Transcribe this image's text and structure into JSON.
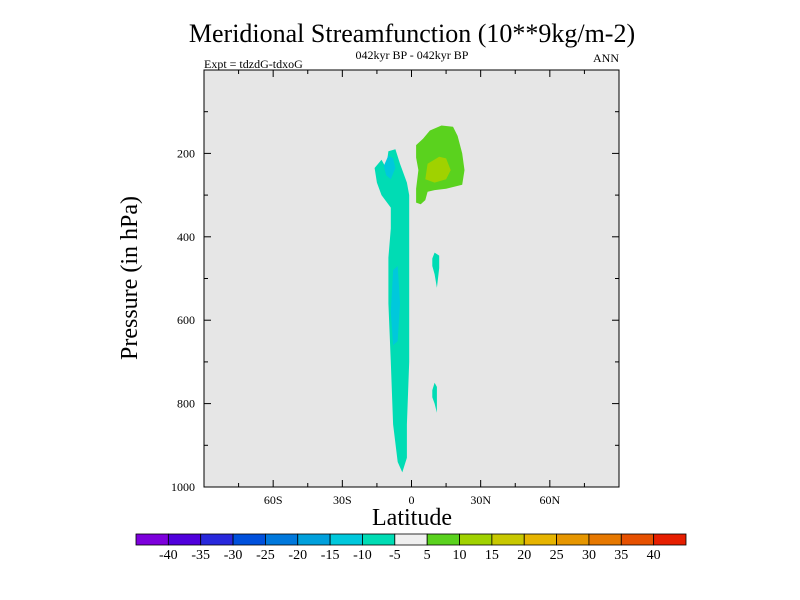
{
  "chart_data": {
    "type": "contour",
    "title": "Meridional Streamfunction (10**9kg/m-2)",
    "subtitle": "042kyr BP - 042kyr BP",
    "left_string": "Expt = tdzdG-tdxoG",
    "right_string": "ANN",
    "xlabel": "Latitude",
    "ylabel": "Pressure (in hPa)",
    "xlim": [
      -90,
      90
    ],
    "ylim": [
      1000,
      0
    ],
    "x_ticks": [
      {
        "value": -60,
        "label": "60S"
      },
      {
        "value": -30,
        "label": "30S"
      },
      {
        "value": 0,
        "label": "0"
      },
      {
        "value": 30,
        "label": "30N"
      },
      {
        "value": 60,
        "label": "60N"
      }
    ],
    "y_ticks": [
      {
        "value": 200,
        "label": "200"
      },
      {
        "value": 400,
        "label": "400"
      },
      {
        "value": 600,
        "label": "600"
      },
      {
        "value": 800,
        "label": "800"
      },
      {
        "value": 1000,
        "label": "1000"
      }
    ],
    "background_color": "#e6e6e6",
    "regions": [
      {
        "name": "negative-cell-main",
        "level": -10,
        "color": "#00dcb4",
        "points": [
          [
            -11,
            235
          ],
          [
            -10,
            195
          ],
          [
            -7,
            190
          ],
          [
            -5,
            225
          ],
          [
            -2,
            270
          ],
          [
            -1,
            300
          ],
          [
            -1,
            400
          ],
          [
            -1,
            550
          ],
          [
            -1,
            700
          ],
          [
            -2,
            850
          ],
          [
            -2,
            930
          ],
          [
            -4,
            965
          ],
          [
            -6,
            940
          ],
          [
            -8,
            850
          ],
          [
            -9,
            700
          ],
          [
            -10,
            560
          ],
          [
            -10,
            450
          ],
          [
            -9,
            380
          ],
          [
            -9,
            330
          ],
          [
            -13,
            300
          ],
          [
            -15,
            270
          ],
          [
            -16,
            235
          ],
          [
            -13,
            215
          ]
        ]
      },
      {
        "name": "negative-cell-core",
        "level": -15,
        "color": "#00c8dc",
        "points": [
          [
            -12,
            230
          ],
          [
            -10,
            205
          ],
          [
            -8,
            212
          ],
          [
            -7,
            235
          ],
          [
            -9,
            262
          ],
          [
            -11,
            252
          ]
        ]
      },
      {
        "name": "negative-cell-lower",
        "level": -15,
        "color": "#00c8dc",
        "points": [
          [
            -8,
            480
          ],
          [
            -6,
            470
          ],
          [
            -5,
            560
          ],
          [
            -6,
            650
          ],
          [
            -8,
            660
          ],
          [
            -9,
            580
          ]
        ]
      },
      {
        "name": "positive-cell",
        "level": 10,
        "color": "#5ad21e",
        "points": [
          [
            2,
            180
          ],
          [
            5,
            165
          ],
          [
            8,
            145
          ],
          [
            13,
            133
          ],
          [
            18,
            136
          ],
          [
            20,
            158
          ],
          [
            22,
            200
          ],
          [
            23,
            240
          ],
          [
            22,
            275
          ],
          [
            15,
            285
          ],
          [
            10,
            288
          ],
          [
            7,
            292
          ],
          [
            6,
            312
          ],
          [
            4,
            322
          ],
          [
            2,
            318
          ],
          [
            2,
            285
          ],
          [
            3,
            240
          ],
          [
            2,
            210
          ]
        ]
      },
      {
        "name": "positive-cell-core",
        "level": 15,
        "color": "#a0d200",
        "points": [
          [
            6,
            262
          ],
          [
            7,
            225
          ],
          [
            12,
            208
          ],
          [
            15,
            212
          ],
          [
            17,
            240
          ],
          [
            15,
            262
          ],
          [
            10,
            270
          ]
        ]
      },
      {
        "name": "negative-strip-mid",
        "level": -10,
        "color": "#00dcb4",
        "points": [
          [
            9,
            452
          ],
          [
            10,
            438
          ],
          [
            12,
            445
          ],
          [
            12,
            475
          ],
          [
            11,
            522
          ],
          [
            10,
            490
          ],
          [
            9,
            470
          ]
        ]
      },
      {
        "name": "negative-strip-low",
        "level": -10,
        "color": "#00dcb4",
        "points": [
          [
            9,
            768
          ],
          [
            10,
            750
          ],
          [
            11,
            760
          ],
          [
            11,
            790
          ],
          [
            11,
            822
          ],
          [
            10,
            800
          ],
          [
            9,
            785
          ]
        ]
      }
    ],
    "colorbar": {
      "colors": [
        "#7d00dc",
        "#5000dc",
        "#2828dc",
        "#0050dc",
        "#0078dc",
        "#00a0dc",
        "#00c8dc",
        "#00dcb4",
        "#f0f0f0",
        "#5ad21e",
        "#a0d200",
        "#c8c800",
        "#e6b400",
        "#e69600",
        "#e67800",
        "#e65000",
        "#e61e00"
      ],
      "labels": [
        "-40",
        "-35",
        "-30",
        "-25",
        "-20",
        "-15",
        "-10",
        "-5",
        "5",
        "10",
        "15",
        "20",
        "25",
        "30",
        "35",
        "40"
      ]
    }
  }
}
